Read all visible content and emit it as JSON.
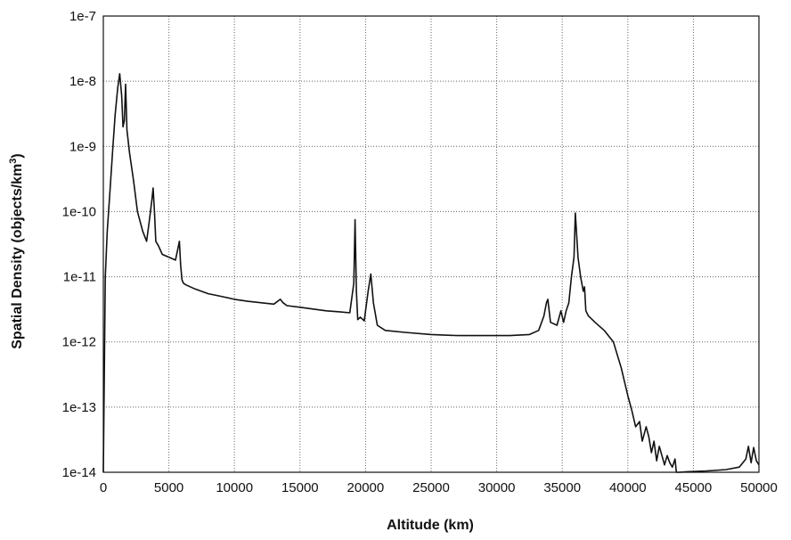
{
  "chart_data": {
    "type": "line",
    "title": "",
    "xlabel": "Altitude (km)",
    "ylabel": "Spatial Density (objects/km",
    "ylabel_superscript": "3",
    "ylabel_suffix": ")",
    "xlim": [
      0,
      50000
    ],
    "ylim": [
      1e-14,
      1e-07
    ],
    "yscale": "log",
    "grid": true,
    "legend": "none",
    "x_ticks": [
      "0",
      "5000",
      "10000",
      "15000",
      "20000",
      "25000",
      "30000",
      "35000",
      "40000",
      "45000",
      "50000"
    ],
    "y_ticks": [
      "1e-14",
      "1e-13",
      "1e-12",
      "1e-11",
      "1e-10",
      "1e-9",
      "1e-8",
      "1e-7"
    ],
    "series": [
      {
        "x": [
          0,
          150,
          300,
          500,
          700,
          900,
          1100,
          1250,
          1400,
          1500,
          1600,
          1700,
          1800,
          2000,
          2300,
          2600,
          3000,
          3300,
          3500,
          3700,
          3800,
          3900,
          4000,
          4200,
          4500,
          5000,
          5500,
          5800,
          5900,
          6000,
          6100,
          6300,
          7000,
          8000,
          9000,
          10000,
          11000,
          12000,
          13000,
          13500,
          13700,
          14000,
          15000,
          16000,
          17000,
          18000,
          18800,
          19100,
          19200,
          19300,
          19400,
          19600,
          19900,
          20200,
          20400,
          20600,
          20900,
          21500,
          23000,
          25000,
          27000,
          29000,
          31000,
          32500,
          33200,
          33600,
          33800,
          33900,
          34100,
          34600,
          34900,
          35100,
          35300,
          35500,
          35700,
          35900,
          36000,
          36200,
          36400,
          36600,
          36700,
          36800,
          37000,
          37500,
          38200,
          38900,
          39500,
          40000,
          40300,
          40600,
          40900,
          41100,
          41400,
          41600,
          41800,
          42000,
          42200,
          42400,
          42600,
          42800,
          43000,
          43200,
          43400,
          43600,
          43700,
          43900,
          44500,
          46000,
          47500,
          48500,
          49000,
          49200,
          49400,
          49600,
          49800,
          50000
        ],
        "values": [
          1e-14,
          1e-11,
          5e-11,
          2e-10,
          8e-10,
          3e-09,
          8e-09,
          1.3e-08,
          6e-09,
          2e-09,
          2.5e-09,
          9e-09,
          1.8e-09,
          8e-10,
          3e-10,
          1e-10,
          5e-11,
          3.5e-11,
          7e-11,
          1.5e-10,
          2.3e-10,
          1e-10,
          3.5e-11,
          3e-11,
          2.2e-11,
          2e-11,
          1.8e-11,
          3.5e-11,
          1.5e-11,
          9e-12,
          8e-12,
          7.5e-12,
          6.5e-12,
          5.5e-12,
          5e-12,
          4.5e-12,
          4.2e-12,
          4e-12,
          3.8e-12,
          4.5e-12,
          4e-12,
          3.6e-12,
          3.4e-12,
          3.2e-12,
          3e-12,
          2.9e-12,
          2.8e-12,
          8e-12,
          7.5e-11,
          6e-12,
          2.2e-12,
          2.4e-12,
          2.1e-12,
          6e-12,
          1.1e-11,
          4e-12,
          1.8e-12,
          1.5e-12,
          1.4e-12,
          1.3e-12,
          1.25e-12,
          1.25e-12,
          1.25e-12,
          1.3e-12,
          1.5e-12,
          2.5e-12,
          4e-12,
          4.5e-12,
          2e-12,
          1.8e-12,
          3e-12,
          2e-12,
          3e-12,
          4e-12,
          1e-11,
          2e-11,
          9.5e-11,
          2e-11,
          1e-11,
          6e-12,
          7e-12,
          3e-12,
          2.5e-12,
          2e-12,
          1.5e-12,
          1e-12,
          4e-13,
          1.5e-13,
          9e-14,
          5e-14,
          6e-14,
          3e-14,
          5e-14,
          3.5e-14,
          2e-14,
          3e-14,
          1.5e-14,
          2.5e-14,
          1.8e-14,
          1.3e-14,
          1.8e-14,
          1.4e-14,
          1.2e-14,
          1.6e-14,
          1e-14,
          1e-14,
          1.02e-14,
          1.05e-14,
          1.1e-14,
          1.2e-14,
          1.6e-14,
          2.5e-14,
          1.4e-14,
          2.4e-14,
          1.5e-14,
          1.3e-14
        ]
      }
    ]
  }
}
